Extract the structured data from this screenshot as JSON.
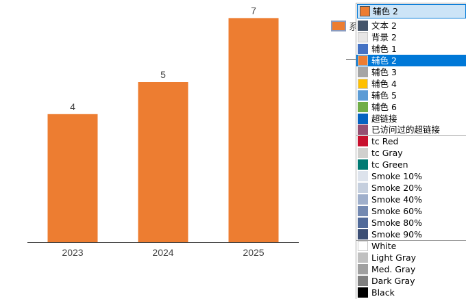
{
  "chart_data": {
    "type": "bar",
    "categories": [
      "2023",
      "2024",
      "2025"
    ],
    "values": [
      4,
      5,
      7
    ],
    "data_labels": [
      "4",
      "5",
      "7"
    ],
    "bar_color": "#ED7D31",
    "ylim": [
      0,
      7.5
    ],
    "grid": false
  },
  "legend": {
    "swatch_color": "#ED7D31",
    "text": "系"
  },
  "dropdown": {
    "selected": {
      "label": "辅色 2",
      "color": "#ED7D31"
    },
    "items": [
      {
        "label": "文本 2",
        "color": "#44546A"
      },
      {
        "label": "背景 2",
        "color": "#E7E6E6"
      },
      {
        "label": "辅色 1",
        "color": "#4472C4"
      },
      {
        "label": "辅色 2",
        "color": "#ED7D31",
        "selected": true
      },
      {
        "label": "辅色 3",
        "color": "#A5A5A5"
      },
      {
        "label": "辅色 4",
        "color": "#FFC000"
      },
      {
        "label": "辅色 5",
        "color": "#5B9BD5"
      },
      {
        "label": "辅色 6",
        "color": "#70AD47"
      },
      {
        "label": "超链接",
        "color": "#0563C1"
      },
      {
        "label": "已访问过的超链接",
        "color": "#954F72"
      },
      {
        "label": "tc Red",
        "color": "#C8102E",
        "group_start": true
      },
      {
        "label": "tc Gray",
        "color": "#D0D0CE"
      },
      {
        "label": "tc Green",
        "color": "#007A73"
      },
      {
        "label": "Smoke 10%",
        "color": "#DDE3EC"
      },
      {
        "label": "Smoke 20%",
        "color": "#C5CFDE"
      },
      {
        "label": "Smoke 40%",
        "color": "#9FAFCB"
      },
      {
        "label": "Smoke 60%",
        "color": "#7389B1"
      },
      {
        "label": "Smoke 80%",
        "color": "#516A99"
      },
      {
        "label": "Smoke 90%",
        "color": "#3C4F75"
      },
      {
        "label": "White",
        "color": "#FFFFFF",
        "group_start": true
      },
      {
        "label": "Light Gray",
        "color": "#C0C0C0"
      },
      {
        "label": "Med. Gray",
        "color": "#A0A0A0"
      },
      {
        "label": "Dark Gray",
        "color": "#808080"
      },
      {
        "label": "Black",
        "color": "#000000"
      }
    ]
  }
}
